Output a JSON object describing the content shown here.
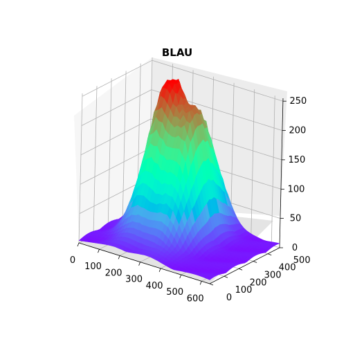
{
  "chart_data": {
    "type": "surface",
    "title": "BLAU",
    "colormap": "rainbow",
    "x": {
      "label": "",
      "range": [
        0,
        640
      ],
      "ticks": [
        0,
        100,
        200,
        300,
        400,
        500,
        600
      ]
    },
    "y": {
      "label": "",
      "range": [
        0,
        480
      ],
      "ticks": [
        0,
        100,
        200,
        300,
        400,
        500
      ]
    },
    "z": {
      "label": "",
      "range": [
        0,
        255
      ],
      "ticks": [
        0,
        50,
        100,
        150,
        200,
        250
      ]
    },
    "grid": true,
    "peaks": [
      {
        "x": 190,
        "y": 330,
        "z": 250
      },
      {
        "x": 330,
        "y": 320,
        "z": 205
      }
    ],
    "colors": {
      "low": "#8000ff",
      "high": "#ff0000",
      "pane_left": "#f6f6f6",
      "pane_right": "#ececec",
      "pane_floor": "#e4e4e4",
      "grid": "#b0b0b0"
    }
  }
}
